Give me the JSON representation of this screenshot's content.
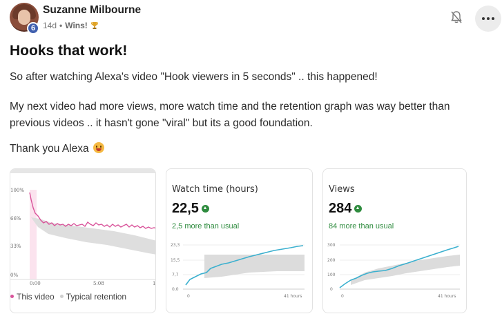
{
  "post": {
    "author": "Suzanne Milbourne",
    "level": "6",
    "time_ago": "14d",
    "separator": "•",
    "category": "Wins!",
    "title": "Hooks that work!",
    "paragraphs": [
      "So after watching Alexa's video \"Hook viewers in 5 seconds\" .. this happened!",
      "My next video had more views, more watch time and the retention graph was way better than previous videos .. it hasn't gone \"viral\" but its a good foundation.",
      "Thank you Alexa"
    ]
  },
  "icons": {
    "bell": "bell-off-icon",
    "more": "more-horizontal-icon",
    "trophy": "trophy-icon",
    "emoji": "grinning-face-icon"
  },
  "colors": {
    "accent_green": "#2e8b3e",
    "retention_pink": "#d9539a",
    "trend_blue": "#3bb0cf",
    "typical_gray": "#dcdcdc",
    "badge_blue": "#3f5fae"
  },
  "cards": {
    "retention": {
      "y_ticks": [
        "100%",
        "66%",
        "33%",
        "0%"
      ],
      "x_ticks": [
        "0:00",
        "5:08",
        "1"
      ],
      "legend": [
        {
          "label": "This video",
          "color": "#d9539a"
        },
        {
          "label": "Typical retention",
          "color": "#cfcfcf"
        }
      ]
    },
    "watch_time": {
      "title": "Watch time (hours)",
      "value": "22,5",
      "sub": "2,5 more than usual",
      "y_ticks": [
        "23,3",
        "15,5",
        "7,7",
        "0,0"
      ],
      "x_ticks": [
        "0",
        "41 hours"
      ]
    },
    "views": {
      "title": "Views",
      "value": "284",
      "sub": "84 more than usual",
      "y_ticks": [
        "300",
        "200",
        "100",
        "0"
      ],
      "x_ticks": [
        "0",
        "41 hours"
      ]
    }
  }
}
